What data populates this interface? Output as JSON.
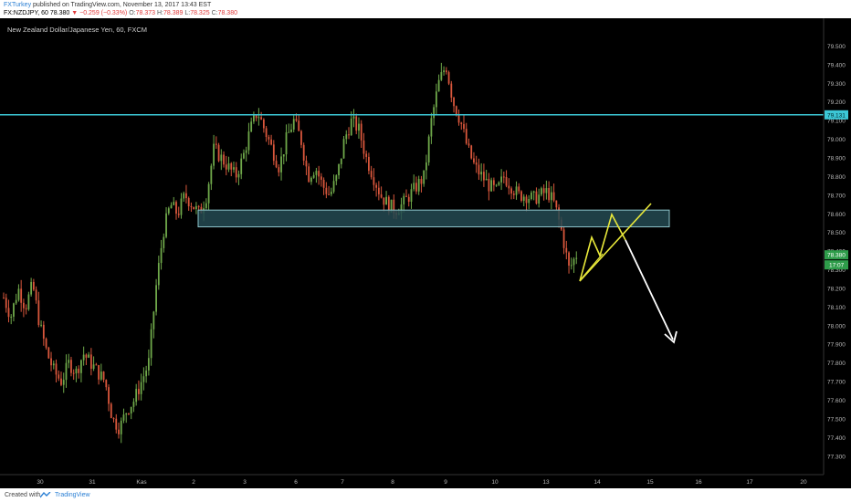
{
  "header": {
    "author": "FXTurkey",
    "published": "published on TradingView.com, November 13, 2017 13:43 EST",
    "symbol": "FX:NZDJPY, 60",
    "price": "78.380",
    "change": "−0.259 (−0.33%)",
    "o_label": "O:",
    "o": "78.373",
    "h_label": "H:",
    "h": "78.389",
    "l_label": "L:",
    "l": "78.325",
    "c_label": "C:",
    "c": "78.380"
  },
  "footer": {
    "created": "Created with",
    "brand": "TradingView"
  },
  "colors": {
    "background": "#000000",
    "up": "#6fa84a",
    "down": "#d9573c",
    "hline": "#3cc7d6",
    "zone_fill": "#244a52",
    "zone_stroke": "#8ec6cc",
    "projection": "#e8e83a",
    "arrow": "#ffffff"
  },
  "chart_data": {
    "type": "candlestick",
    "title": "New Zealand Dollar/Japanese Yen, 60, FXCM",
    "x_tick_labels": [
      "30",
      "31",
      "Kas",
      "2",
      "3",
      "6",
      "7",
      "8",
      "9",
      "10",
      "13",
      "14",
      "15",
      "16",
      "17",
      "20"
    ],
    "y_ticks": [
      "77.300",
      "77.400",
      "77.500",
      "77.600",
      "77.700",
      "77.800",
      "77.900",
      "78.000",
      "78.100",
      "78.200",
      "78.300",
      "78.400",
      "78.500",
      "78.600",
      "78.700",
      "78.800",
      "78.900",
      "79.000",
      "79.100",
      "79.200",
      "79.300",
      "79.400",
      "79.500"
    ],
    "ylim": [
      77.25,
      79.6
    ],
    "series": [
      {
        "values": [
          78.15,
          78.05,
          78.2,
          78.1,
          78.22,
          78.0,
          77.85,
          77.75,
          77.7,
          77.8,
          77.75,
          77.85,
          77.8,
          77.75,
          77.7,
          77.5,
          77.45,
          77.55,
          77.6,
          77.7,
          77.8,
          78.2,
          78.5,
          78.65,
          78.6,
          78.7,
          78.65,
          78.6,
          78.7,
          78.95,
          78.9,
          78.85,
          78.8,
          78.9,
          79.05,
          79.15,
          79.05,
          78.95,
          78.85,
          79.0,
          79.1,
          79.0,
          78.8,
          78.85,
          78.75,
          78.7,
          78.8,
          79.0,
          79.1,
          79.05,
          78.9,
          78.8,
          78.7,
          78.65,
          78.62,
          78.65,
          78.7,
          78.75,
          78.8,
          79.1,
          79.3,
          79.4,
          79.2,
          79.1,
          78.95,
          78.85,
          78.8,
          78.75,
          78.72,
          78.8,
          78.75,
          78.7,
          78.7,
          78.68,
          78.7,
          78.72,
          78.65,
          78.5,
          78.3,
          78.38
        ]
      }
    ],
    "horizontal_line": {
      "price": 79.131,
      "label": "79.131"
    },
    "zone": {
      "low": 78.53,
      "high": 78.62
    },
    "last_price_label": "78.380",
    "countdown_label": "17:07",
    "grid": false
  }
}
